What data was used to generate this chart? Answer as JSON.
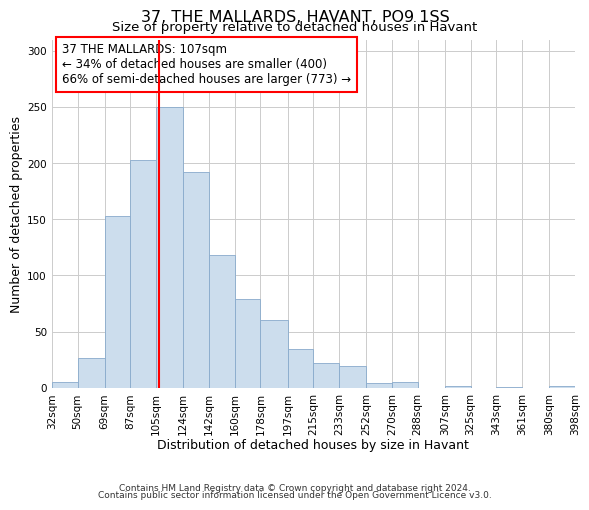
{
  "title": "37, THE MALLARDS, HAVANT, PO9 1SS",
  "subtitle": "Size of property relative to detached houses in Havant",
  "xlabel": "Distribution of detached houses by size in Havant",
  "ylabel": "Number of detached properties",
  "footer_line1": "Contains HM Land Registry data © Crown copyright and database right 2024.",
  "footer_line2": "Contains public sector information licensed under the Open Government Licence v3.0.",
  "bin_labels": [
    "32sqm",
    "50sqm",
    "69sqm",
    "87sqm",
    "105sqm",
    "124sqm",
    "142sqm",
    "160sqm",
    "178sqm",
    "197sqm",
    "215sqm",
    "233sqm",
    "252sqm",
    "270sqm",
    "288sqm",
    "307sqm",
    "325sqm",
    "343sqm",
    "361sqm",
    "380sqm",
    "398sqm"
  ],
  "bar_heights": [
    5,
    27,
    153,
    203,
    250,
    192,
    118,
    79,
    60,
    35,
    22,
    19,
    4,
    5,
    0,
    2,
    0,
    1,
    0,
    2
  ],
  "bar_color": "#ccdded",
  "bar_edge_color": "#88aacc",
  "annotation_line1": "37 THE MALLARDS: 107sqm",
  "annotation_line2": "← 34% of detached houses are smaller (400)",
  "annotation_line3": "66% of semi-detached houses are larger (773) →",
  "vline_x": 107,
  "vline_color": "red",
  "ylim": [
    0,
    310
  ],
  "yticks": [
    0,
    50,
    100,
    150,
    200,
    250,
    300
  ],
  "grid_color": "#cccccc",
  "background_color": "#ffffff",
  "title_fontsize": 11.5,
  "subtitle_fontsize": 9.5,
  "axis_label_fontsize": 9,
  "tick_fontsize": 7.5,
  "annotation_fontsize": 8.5,
  "footer_fontsize": 6.5
}
